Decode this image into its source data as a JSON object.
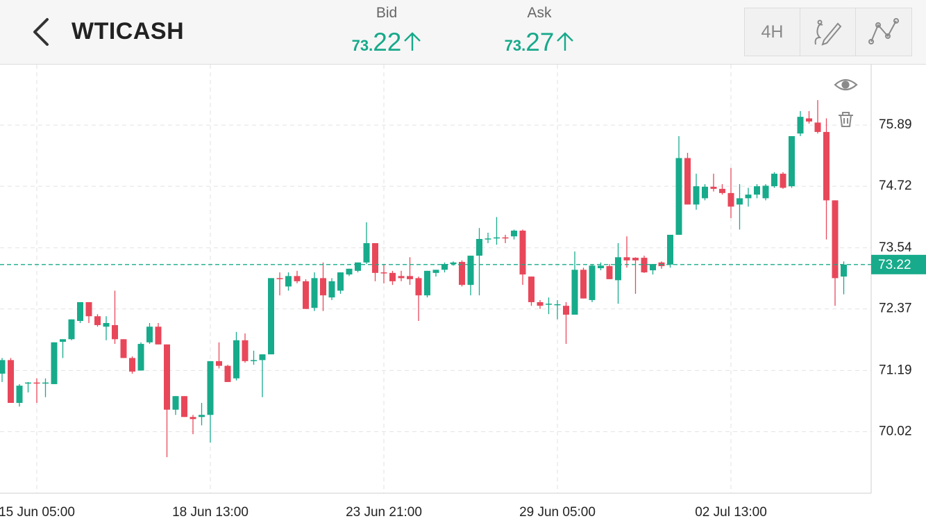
{
  "header": {
    "title": "WTICASH",
    "bid": {
      "label": "Bid",
      "price_head": "73.",
      "price_tail": "22"
    },
    "ask": {
      "label": "Ask",
      "price_head": "73.",
      "price_tail": "27"
    },
    "timeframe": "4H"
  },
  "chart_data": {
    "type": "candlestick",
    "categories": [
      null,
      null,
      null,
      null,
      "15 Jun 05:00",
      null,
      null,
      null,
      null,
      null,
      null,
      null,
      null,
      null,
      null,
      null,
      null,
      null,
      null,
      null,
      null,
      null,
      null,
      null,
      "18 Jun 13:00",
      null,
      null,
      null,
      null,
      null,
      null,
      null,
      null,
      null,
      null,
      null,
      null,
      null,
      null,
      null,
      null,
      null,
      null,
      null,
      "23 Jun 21:00",
      null,
      null,
      null,
      null,
      null,
      null,
      null,
      null,
      null,
      null,
      null,
      null,
      null,
      null,
      null,
      null,
      null,
      null,
      null,
      "29 Jun 05:00",
      null,
      null,
      null,
      null,
      null,
      null,
      null,
      null,
      null,
      null,
      null,
      null,
      null,
      null,
      null,
      null,
      null,
      null,
      null,
      "02 Jul 13:00",
      null,
      null,
      null,
      null,
      null,
      null,
      null,
      null,
      null,
      null,
      null,
      null,
      null
    ],
    "open": [
      71.13,
      71.39,
      70.57,
      70.94,
      70.96,
      70.94,
      70.93,
      71.74,
      71.79,
      72.14,
      72.5,
      72.23,
      72.03,
      72.06,
      71.79,
      71.43,
      71.19,
      71.73,
      72.03,
      71.69,
      70.44,
      70.7,
      70.3,
      70.3,
      70.34,
      71.37,
      71.28,
      71.04,
      71.77,
      71.37,
      71.39,
      71.5,
      72.96,
      72.8,
      73.0,
      72.9,
      72.39,
      72.96,
      72.59,
      72.72,
      73.03,
      73.1,
      73.26,
      73.63,
      73.07,
      73.06,
      73.0,
      73.0,
      72.96,
      72.63,
      73.06,
      73.12,
      73.23,
      73.27,
      72.83,
      73.39,
      73.71,
      73.72,
      73.74,
      73.76,
      73.87,
      72.99,
      72.5,
      72.46,
      72.46,
      72.43,
      72.26,
      73.12,
      72.54,
      73.15,
      73.19,
      72.92,
      73.36,
      73.35,
      73.35,
      73.11,
      73.26,
      73.22,
      73.79,
      75.26,
      74.37,
      74.49,
      74.71,
      74.67,
      74.59,
      74.37,
      74.49,
      74.56,
      74.49,
      74.72,
      74.96,
      74.72,
      75.73,
      76.02,
      75.94,
      75.76,
      74.45,
      72.99
    ],
    "high": [
      71.43,
      71.43,
      70.93,
      70.97,
      71.04,
      71.04,
      71.73,
      71.79,
      72.17,
      72.5,
      72.5,
      72.27,
      72.23,
      72.72,
      71.79,
      71.46,
      71.73,
      72.1,
      72.1,
      71.69,
      70.7,
      70.7,
      70.34,
      70.57,
      71.37,
      71.73,
      71.3,
      71.93,
      71.9,
      71.57,
      71.5,
      72.96,
      73.07,
      73.07,
      73.1,
      72.94,
      73.07,
      73.26,
      72.96,
      73.07,
      73.14,
      73.26,
      74.03,
      73.63,
      73.23,
      73.1,
      73.1,
      73.36,
      72.99,
      73.1,
      73.12,
      73.26,
      73.28,
      73.3,
      73.39,
      73.92,
      73.83,
      74.13,
      73.79,
      73.89,
      73.89,
      72.99,
      72.54,
      72.59,
      72.54,
      72.5,
      73.47,
      73.16,
      73.23,
      73.26,
      73.23,
      73.63,
      73.76,
      73.36,
      73.39,
      73.23,
      73.28,
      73.79,
      75.68,
      75.36,
      74.96,
      74.76,
      74.96,
      74.76,
      75.07,
      74.76,
      74.69,
      74.76,
      74.76,
      74.99,
      74.99,
      75.68,
      76.16,
      76.16,
      76.37,
      76.02,
      74.45,
      73.28
    ],
    "low": [
      70.97,
      70.57,
      70.5,
      70.77,
      70.57,
      70.68,
      70.93,
      71.43,
      71.77,
      72.1,
      72.1,
      72.03,
      71.77,
      71.7,
      71.43,
      71.13,
      71.19,
      71.7,
      71.69,
      69.53,
      70.34,
      70.3,
      69.97,
      70.14,
      69.81,
      71.23,
      70.97,
      71.0,
      71.34,
      71.3,
      70.68,
      71.5,
      72.63,
      72.72,
      72.86,
      72.37,
      72.33,
      72.33,
      72.54,
      72.66,
      73.0,
      73.07,
      73.23,
      72.9,
      72.86,
      72.83,
      72.9,
      72.83,
      72.14,
      72.59,
      72.99,
      73.07,
      73.2,
      72.8,
      72.63,
      72.63,
      73.63,
      73.6,
      73.63,
      73.7,
      72.83,
      72.43,
      72.37,
      72.27,
      72.17,
      71.7,
      72.26,
      72.57,
      72.5,
      73.11,
      72.94,
      72.47,
      73.16,
      72.66,
      73.06,
      73.03,
      73.14,
      73.16,
      73.79,
      74.37,
      74.27,
      74.45,
      74.62,
      74.56,
      74.11,
      73.89,
      74.33,
      74.49,
      74.45,
      74.69,
      74.67,
      74.69,
      75.68,
      75.92,
      75.73,
      73.7,
      72.43,
      72.65
    ],
    "close": [
      71.39,
      70.57,
      70.9,
      70.96,
      70.94,
      70.96,
      71.73,
      71.79,
      72.17,
      72.5,
      72.23,
      72.06,
      72.1,
      71.79,
      71.43,
      71.17,
      71.7,
      72.03,
      71.69,
      70.44,
      70.7,
      70.3,
      70.26,
      70.34,
      71.37,
      71.28,
      70.97,
      71.77,
      71.37,
      71.39,
      71.5,
      72.96,
      72.94,
      73.0,
      72.9,
      72.37,
      72.96,
      72.63,
      72.9,
      73.07,
      73.14,
      73.26,
      73.63,
      73.06,
      73.06,
      72.9,
      72.96,
      72.94,
      72.63,
      73.1,
      73.12,
      73.23,
      73.26,
      72.83,
      73.39,
      73.71,
      73.72,
      73.74,
      73.72,
      73.87,
      73.03,
      72.5,
      72.43,
      72.47,
      72.46,
      72.26,
      73.12,
      72.57,
      73.2,
      73.2,
      72.94,
      73.36,
      73.3,
      73.3,
      73.07,
      73.23,
      73.19,
      73.79,
      75.26,
      74.37,
      74.72,
      74.71,
      74.67,
      74.59,
      74.33,
      74.49,
      74.56,
      74.72,
      74.73,
      74.96,
      74.69,
      75.68,
      76.05,
      75.96,
      75.76,
      74.45,
      72.96,
      73.22
    ],
    "up_color": "#17ab8b",
    "down_color": "#e8475a",
    "ylim": [
      68.84,
      77.05
    ],
    "yticks": [
      70.02,
      71.19,
      72.37,
      73.54,
      74.72,
      75.89
    ],
    "grid": true,
    "current_price": 73.22
  }
}
